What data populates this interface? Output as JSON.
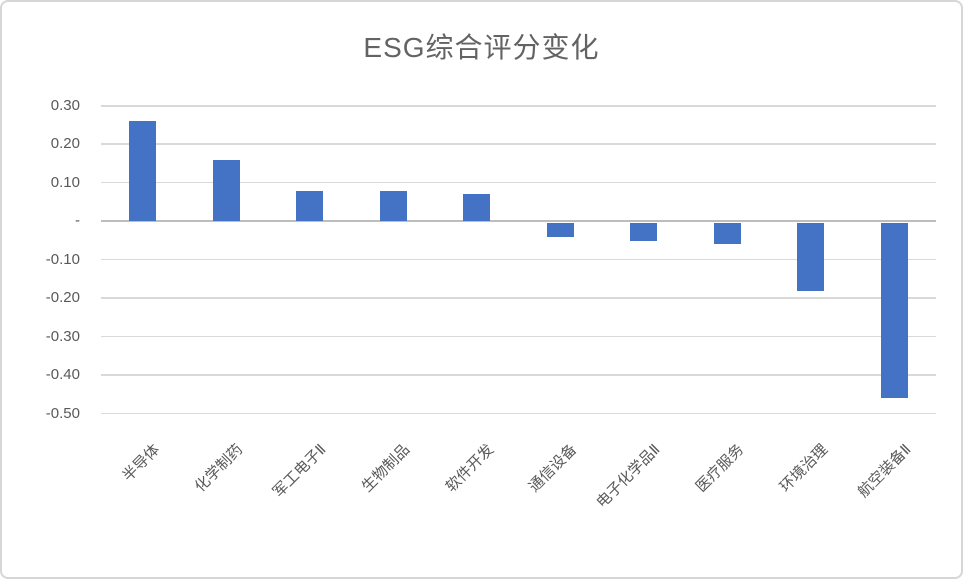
{
  "chart": {
    "title": "ESG综合评分变化",
    "bar_color": "#4472C4",
    "grid_color": "#d9d9d9",
    "zero_line_color": "#bdbdbd",
    "text_color": "#595959"
  },
  "chart_data": {
    "type": "bar",
    "title": "ESG综合评分变化",
    "categories": [
      "半导体",
      "化学制药",
      "军工电子Ⅱ",
      "生物制品",
      "软件开发",
      "通信设备",
      "电子化学品Ⅱ",
      "医疗服务",
      "环境治理",
      "航空装备Ⅱ"
    ],
    "values": [
      0.26,
      0.16,
      0.08,
      0.08,
      0.07,
      -0.04,
      -0.05,
      -0.06,
      -0.18,
      -0.46
    ],
    "xlabel": "",
    "ylabel": "",
    "ylim": [
      -0.5,
      0.3
    ],
    "ytick_step": 0.1,
    "ytick_labels": [
      "0.30",
      "0.20",
      "0.10",
      "-",
      "-0.10",
      "-0.20",
      "-0.30",
      "-0.40",
      "-0.50"
    ],
    "grid": true,
    "legend": false
  }
}
